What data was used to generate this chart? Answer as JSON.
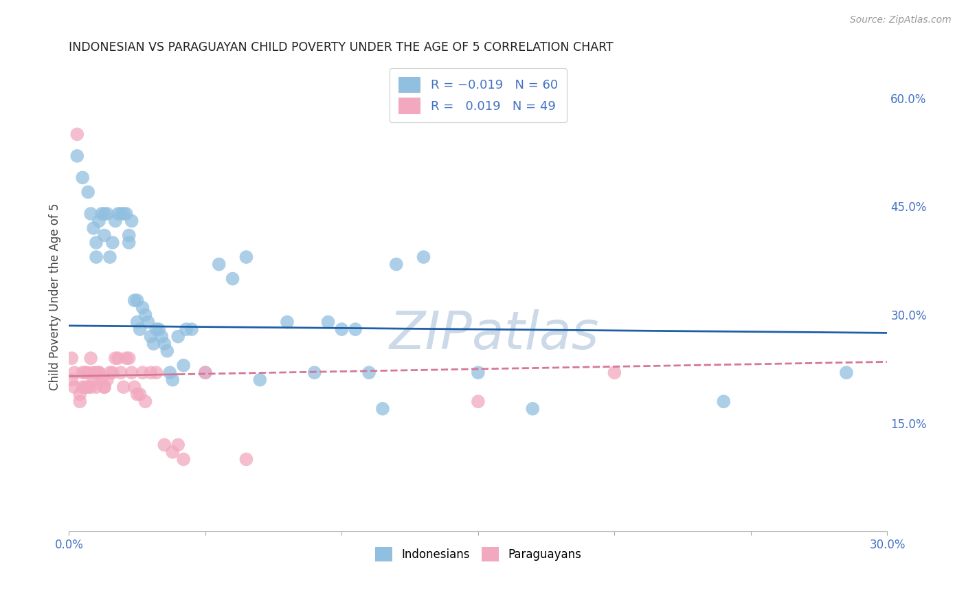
{
  "title": "INDONESIAN VS PARAGUAYAN CHILD POVERTY UNDER THE AGE OF 5 CORRELATION CHART",
  "source": "Source: ZipAtlas.com",
  "ylabel": "Child Poverty Under the Age of 5",
  "xlim": [
    0.0,
    0.3
  ],
  "ylim": [
    0.0,
    0.65
  ],
  "xtick_vals": [
    0.0,
    0.05,
    0.1,
    0.15,
    0.2,
    0.25,
    0.3
  ],
  "right_yticks": [
    0.15,
    0.3,
    0.45,
    0.6
  ],
  "right_yticklabels": [
    "15.0%",
    "30.0%",
    "45.0%",
    "60.0%"
  ],
  "blue_dot_color": "#91bfe0",
  "pink_dot_color": "#f2a8be",
  "blue_line_color": "#1f5fa6",
  "pink_line_color": "#d47899",
  "grid_color": "#cccccc",
  "bg_color": "#ffffff",
  "tick_label_color": "#4472c4",
  "title_color": "#222222",
  "source_color": "#999999",
  "ylabel_color": "#444444",
  "watermark_text": "ZIPatlas",
  "watermark_color": "#ccd9e8",
  "legend_label_color": "#4472c4",
  "indonesian_x": [
    0.003,
    0.005,
    0.007,
    0.008,
    0.009,
    0.01,
    0.01,
    0.011,
    0.012,
    0.013,
    0.013,
    0.014,
    0.015,
    0.016,
    0.017,
    0.018,
    0.019,
    0.02,
    0.021,
    0.022,
    0.022,
    0.023,
    0.024,
    0.025,
    0.025,
    0.026,
    0.027,
    0.028,
    0.029,
    0.03,
    0.031,
    0.032,
    0.033,
    0.034,
    0.035,
    0.036,
    0.037,
    0.038,
    0.04,
    0.042,
    0.043,
    0.045,
    0.05,
    0.055,
    0.06,
    0.065,
    0.07,
    0.08,
    0.09,
    0.095,
    0.1,
    0.105,
    0.11,
    0.115,
    0.12,
    0.13,
    0.15,
    0.17,
    0.24,
    0.285
  ],
  "indonesian_y": [
    0.52,
    0.49,
    0.47,
    0.44,
    0.42,
    0.4,
    0.38,
    0.43,
    0.44,
    0.44,
    0.41,
    0.44,
    0.38,
    0.4,
    0.43,
    0.44,
    0.44,
    0.44,
    0.44,
    0.41,
    0.4,
    0.43,
    0.32,
    0.29,
    0.32,
    0.28,
    0.31,
    0.3,
    0.29,
    0.27,
    0.26,
    0.28,
    0.28,
    0.27,
    0.26,
    0.25,
    0.22,
    0.21,
    0.27,
    0.23,
    0.28,
    0.28,
    0.22,
    0.37,
    0.35,
    0.38,
    0.21,
    0.29,
    0.22,
    0.29,
    0.28,
    0.28,
    0.22,
    0.17,
    0.37,
    0.38,
    0.22,
    0.17,
    0.18,
    0.22
  ],
  "paraguayan_x": [
    0.001,
    0.001,
    0.002,
    0.002,
    0.003,
    0.004,
    0.004,
    0.005,
    0.005,
    0.006,
    0.006,
    0.007,
    0.007,
    0.008,
    0.008,
    0.009,
    0.009,
    0.01,
    0.01,
    0.011,
    0.011,
    0.012,
    0.013,
    0.013,
    0.014,
    0.015,
    0.016,
    0.017,
    0.018,
    0.019,
    0.02,
    0.021,
    0.022,
    0.023,
    0.024,
    0.025,
    0.026,
    0.027,
    0.028,
    0.03,
    0.032,
    0.035,
    0.038,
    0.04,
    0.042,
    0.05,
    0.065,
    0.15,
    0.2
  ],
  "paraguayan_y": [
    0.21,
    0.24,
    0.22,
    0.2,
    0.55,
    0.19,
    0.18,
    0.2,
    0.22,
    0.2,
    0.22,
    0.2,
    0.22,
    0.2,
    0.24,
    0.21,
    0.22,
    0.2,
    0.22,
    0.22,
    0.22,
    0.21,
    0.2,
    0.2,
    0.21,
    0.22,
    0.22,
    0.24,
    0.24,
    0.22,
    0.2,
    0.24,
    0.24,
    0.22,
    0.2,
    0.19,
    0.19,
    0.22,
    0.18,
    0.22,
    0.22,
    0.12,
    0.11,
    0.12,
    0.1,
    0.22,
    0.1,
    0.18,
    0.22
  ],
  "indo_line_y0": 0.285,
  "indo_line_y1": 0.275,
  "para_line_y0": 0.215,
  "para_line_y1": 0.235
}
